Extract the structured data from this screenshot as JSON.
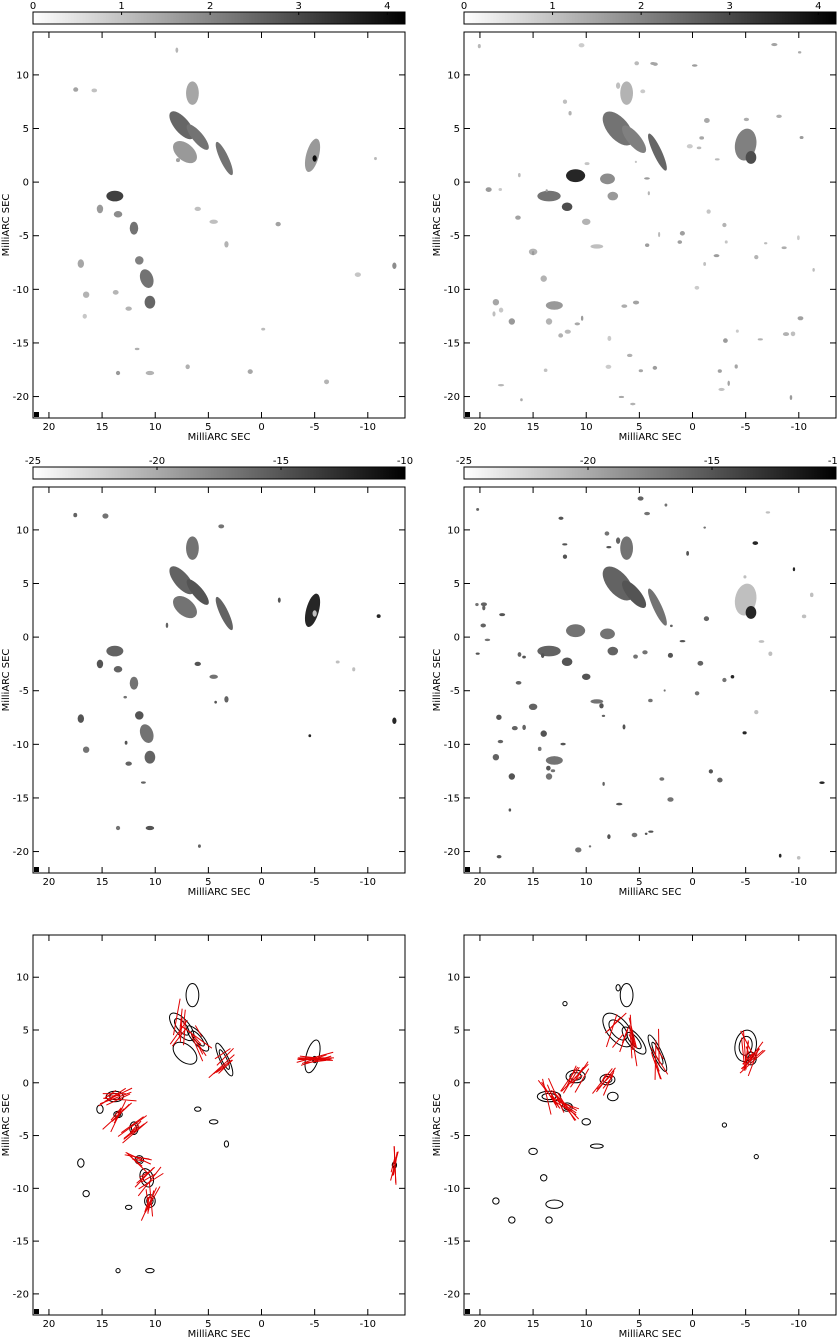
{
  "figure": {
    "x_axis_label": "MilliARC SEC",
    "y_axis_label": "MilliARC SEC",
    "x_tick_labels": [
      "20",
      "15",
      "10",
      "5",
      "0",
      "-5",
      "-10"
    ],
    "y_tick_labels": [
      "10",
      "5",
      "0",
      "-5",
      "-10",
      "-15",
      "-20"
    ],
    "colorbar_rows": [
      {
        "ticks": [
          "0",
          "1",
          "2",
          "3",
          "4"
        ],
        "range": [
          0,
          4.2
        ]
      },
      {
        "ticks": [
          "-25",
          "-20",
          "-15",
          "-10"
        ],
        "range": [
          -25,
          -10
        ]
      }
    ]
  },
  "chart_data": [
    {
      "type": "heatmap",
      "panel": "top-left",
      "xlim": [
        21.5,
        -13.5
      ],
      "ylim": [
        -22,
        14
      ],
      "colorbar_range": [
        0,
        4.2
      ],
      "grayscale": true
    },
    {
      "type": "heatmap",
      "panel": "top-right",
      "xlim": [
        21.5,
        -13.5
      ],
      "ylim": [
        -22,
        14
      ],
      "colorbar_range": [
        0,
        4.2
      ],
      "grayscale": true
    },
    {
      "type": "heatmap",
      "panel": "middle-left",
      "xlim": [
        21.5,
        -13.5
      ],
      "ylim": [
        -22,
        14
      ],
      "colorbar_range": [
        -25,
        -10
      ],
      "grayscale": true
    },
    {
      "type": "heatmap",
      "panel": "middle-right",
      "xlim": [
        21.5,
        -13.5
      ],
      "ylim": [
        -22,
        14
      ],
      "colorbar_range": [
        -25,
        -10
      ],
      "grayscale": true
    },
    {
      "type": "contour",
      "panel": "bottom-left",
      "xlim": [
        21.5,
        -13.5
      ],
      "ylim": [
        -22,
        14
      ],
      "overlay": "polarization vectors",
      "overlay_color": "#e00000"
    },
    {
      "type": "contour",
      "panel": "bottom-right",
      "xlim": [
        21.5,
        -13.5
      ],
      "ylim": [
        -22,
        14
      ],
      "overlay": "polarization vectors",
      "overlay_color": "#e00000"
    }
  ]
}
